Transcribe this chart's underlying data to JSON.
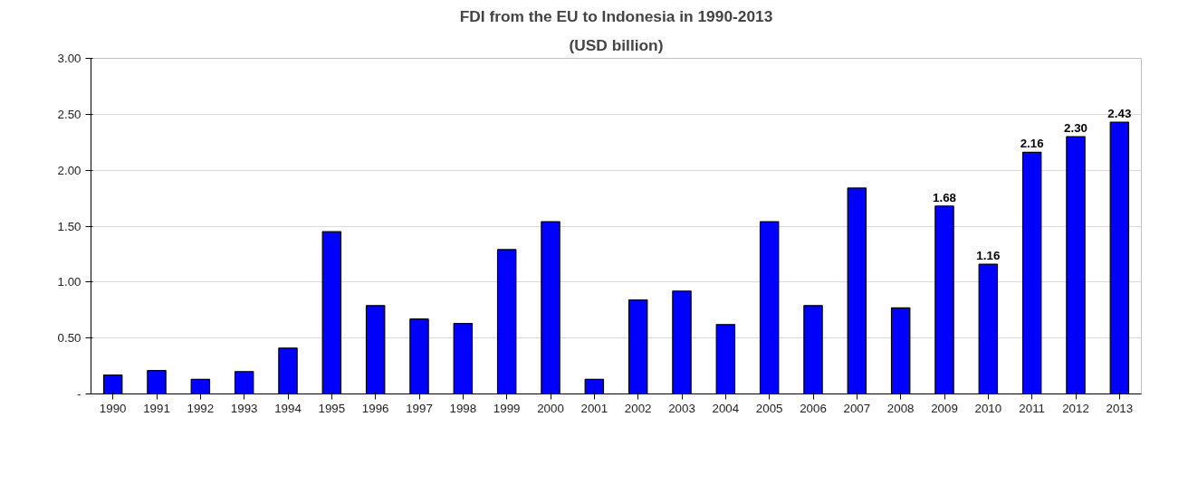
{
  "chart_data": {
    "type": "bar",
    "title": "FDI from the EU to Indonesia in 1990-2013",
    "subtitle": "(USD billion)",
    "categories": [
      "1990",
      "1991",
      "1992",
      "1993",
      "1994",
      "1995",
      "1996",
      "1997",
      "1998",
      "1999",
      "2000",
      "2001",
      "2002",
      "2003",
      "2004",
      "2005",
      "2006",
      "2007",
      "2008",
      "2009",
      "2010",
      "2011",
      "2012",
      "2013"
    ],
    "values": [
      0.17,
      0.21,
      0.13,
      0.2,
      0.41,
      1.45,
      0.79,
      0.67,
      0.63,
      1.29,
      1.54,
      0.13,
      0.84,
      0.92,
      0.62,
      1.54,
      0.79,
      1.84,
      0.77,
      1.68,
      1.16,
      2.16,
      2.3,
      2.43
    ],
    "value_labels": [
      null,
      null,
      null,
      null,
      null,
      null,
      null,
      null,
      null,
      null,
      null,
      null,
      null,
      null,
      null,
      null,
      null,
      null,
      null,
      "1.68",
      "1.16",
      "2.16",
      "2.30",
      "2.43"
    ],
    "color": "#0000ff",
    "ylim": [
      0,
      3
    ],
    "yticks": [
      {
        "value": 0,
        "label": "-"
      },
      {
        "value": 0.5,
        "label": "0.50"
      },
      {
        "value": 1,
        "label": "1.00"
      },
      {
        "value": 1.5,
        "label": "1.50"
      },
      {
        "value": 2,
        "label": "2.00"
      },
      {
        "value": 2.5,
        "label": "2.50"
      },
      {
        "value": 3,
        "label": "3.00"
      }
    ],
    "grid": "y"
  }
}
